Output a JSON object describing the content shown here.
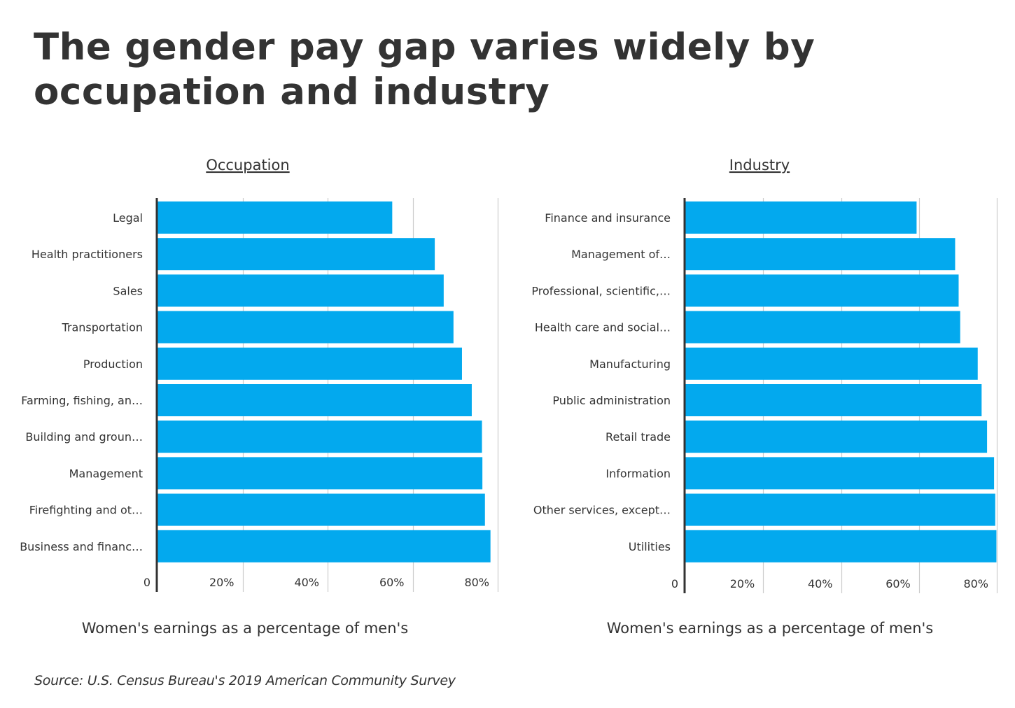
{
  "title": "The gender pay gap varies widely by occupation and industry",
  "source": "Source: U.S. Census Bureau's 2019 American Community Survey",
  "colors": {
    "bar": "#03A9EE",
    "text": "#333333",
    "grid": "#cccccc",
    "axis": "#333333"
  },
  "chart_data": [
    {
      "type": "bar",
      "orientation": "horizontal",
      "title": "Occupation",
      "xlabel": "Women's earnings as a percentage of men's",
      "xlim": [
        0,
        80
      ],
      "xticks": [
        "0",
        "20%",
        "40%",
        "60%",
        "80%"
      ],
      "grid": true,
      "categories": [
        "Legal",
        "Health practitioners",
        "Sales",
        "Transportation",
        "Production",
        "Farming, fishing, an…",
        "Building and groun…",
        "Management",
        "Firefighting and ot…",
        "Business and financ…"
      ],
      "values": [
        55.2,
        65.2,
        67.3,
        69.6,
        71.6,
        73.9,
        76.3,
        76.4,
        77.0,
        78.3
      ]
    },
    {
      "type": "bar",
      "orientation": "horizontal",
      "title": "Industry",
      "xlabel": "Women's earnings as a percentage of men's",
      "xlim": [
        0,
        80
      ],
      "xticks": [
        "0",
        "20%",
        "40%",
        "60%",
        "80%"
      ],
      "grid": true,
      "categories": [
        "Finance and insurance",
        "Management of…",
        "Professional, scientific,…",
        "Health care and social…",
        "Manufacturing",
        "Public administration",
        "Retail trade",
        "Information",
        "Other services, except…",
        "Utilities"
      ],
      "values": [
        59.4,
        69.3,
        70.2,
        70.6,
        75.1,
        76.1,
        77.5,
        79.3,
        79.6,
        79.9
      ]
    }
  ]
}
